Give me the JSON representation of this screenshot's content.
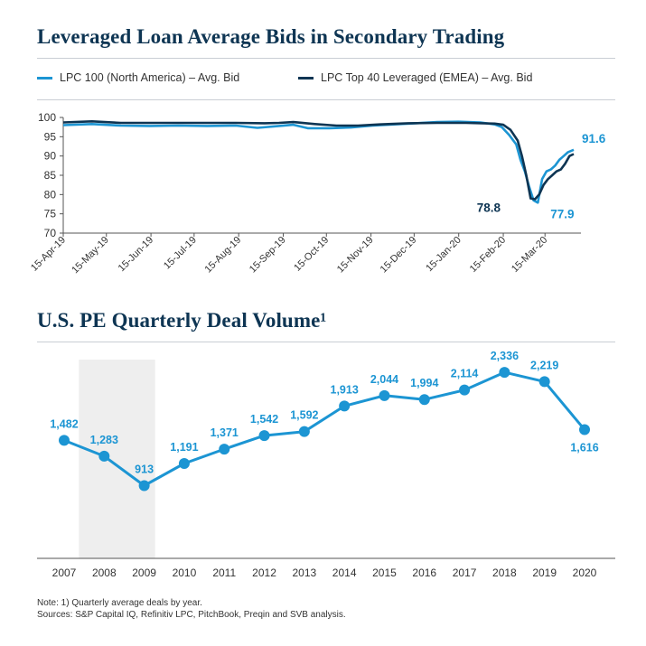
{
  "colors": {
    "light_blue": "#1c95d3",
    "dark_navy": "#0e3553",
    "title": "#0e3553",
    "shade": "#eeeeee"
  },
  "chart1": {
    "title": "Leveraged Loan Average Bids in Secondary Trading",
    "legend": {
      "series_1": "LPC 100 (North America) – Avg. Bid",
      "series_2": "LPC Top 40 Leveraged (EMEA) – Avg. Bid"
    }
  },
  "chart2": {
    "title": "U.S. PE Quarterly Deal Volume¹"
  },
  "notes": {
    "line1": "Note: 1) Quarterly average deals by year.",
    "line2": "Sources: S&P Capital IQ, Refinitiv LPC, PitchBook, Preqin and SVB analysis."
  },
  "chart_data": [
    {
      "type": "line",
      "title": "Leveraged Loan Average Bids in Secondary Trading",
      "xlabel": "",
      "ylabel": "",
      "ylim": [
        70,
        100
      ],
      "yticks": [
        70,
        75,
        80,
        85,
        90,
        95,
        100
      ],
      "x_start": "2019-04-15",
      "x_end": "2020-04-09",
      "xtick_labels": [
        "15-Apr-19",
        "15-May-19",
        "15-Jun-19",
        "15-Jul-19",
        "15-Aug-19",
        "15-Sep-19",
        "15-Oct-19",
        "15-Nov-19",
        "15-Dec-19",
        "15-Jan-20",
        "15-Feb-20",
        "15-Mar-20"
      ],
      "xtick_days": [
        0,
        30,
        61,
        91,
        122,
        153,
        183,
        214,
        244,
        275,
        306,
        335
      ],
      "grid": false,
      "legend": "top",
      "series": [
        {
          "name": "LPC 100 (North America) – Avg. Bid",
          "color": "#1c95d3",
          "days": [
            0,
            20,
            40,
            60,
            80,
            100,
            120,
            135,
            150,
            160,
            170,
            185,
            200,
            215,
            230,
            245,
            260,
            275,
            290,
            300,
            305,
            310,
            315,
            318,
            321,
            324,
            327,
            330,
            333,
            336,
            339,
            342,
            345,
            348,
            351,
            355
          ],
          "values": [
            98.0,
            98.3,
            97.9,
            97.8,
            97.9,
            97.8,
            97.9,
            97.3,
            97.8,
            98.1,
            97.2,
            97.2,
            97.4,
            97.9,
            98.2,
            98.5,
            98.8,
            98.9,
            98.7,
            98.2,
            97.5,
            95.5,
            93.0,
            89.0,
            86.0,
            82.0,
            78.5,
            77.9,
            84.0,
            86.0,
            86.5,
            87.5,
            89.0,
            90.0,
            91.0,
            91.6
          ]
        },
        {
          "name": "LPC Top 40 Leveraged (EMEA) – Avg. Bid",
          "color": "#0e3553",
          "days": [
            0,
            20,
            40,
            60,
            80,
            100,
            120,
            140,
            150,
            160,
            175,
            190,
            205,
            220,
            240,
            260,
            280,
            300,
            306,
            311,
            316,
            319,
            322,
            325,
            328,
            331,
            334,
            337,
            340,
            343,
            346,
            349,
            352,
            355
          ],
          "values": [
            98.7,
            99.0,
            98.6,
            98.6,
            98.6,
            98.6,
            98.6,
            98.5,
            98.6,
            98.8,
            98.3,
            97.9,
            97.9,
            98.2,
            98.5,
            98.6,
            98.6,
            98.4,
            98.1,
            96.8,
            94.0,
            90.0,
            85.0,
            79.0,
            78.8,
            80.0,
            82.5,
            84.0,
            85.0,
            86.0,
            86.5,
            88.0,
            90.0,
            90.5
          ]
        }
      ],
      "annotations": [
        {
          "text": "91.6",
          "series": 0,
          "day": 355,
          "value": 91.6
        },
        {
          "text": "78.8",
          "series": 1,
          "day": 328,
          "value": 78.8
        },
        {
          "text": "77.9",
          "series": 0,
          "day": 330,
          "value": 77.9
        }
      ]
    },
    {
      "type": "line",
      "title": "U.S. PE Quarterly Deal Volume¹",
      "xlabel": "",
      "ylabel": "",
      "ylim": [
        0,
        2700
      ],
      "categories": [
        "2007",
        "2008",
        "2009",
        "2010",
        "2011",
        "2012",
        "2013",
        "2014",
        "2015",
        "2016",
        "2017",
        "2018",
        "2019",
        "2020"
      ],
      "values": [
        1482,
        1283,
        913,
        1191,
        1371,
        1542,
        1592,
        1913,
        2044,
        1994,
        2114,
        2336,
        2219,
        1616
      ],
      "data_labels": [
        "1,482",
        "1,283",
        "913",
        "1,191",
        "1,371",
        "1,542",
        "1,592",
        "1,913",
        "2,044",
        "1,994",
        "2,114",
        "2,336",
        "2,219",
        "1,616"
      ],
      "shaded_range": [
        "2008",
        "2009"
      ],
      "grid": false,
      "color": "#1c95d3"
    }
  ]
}
